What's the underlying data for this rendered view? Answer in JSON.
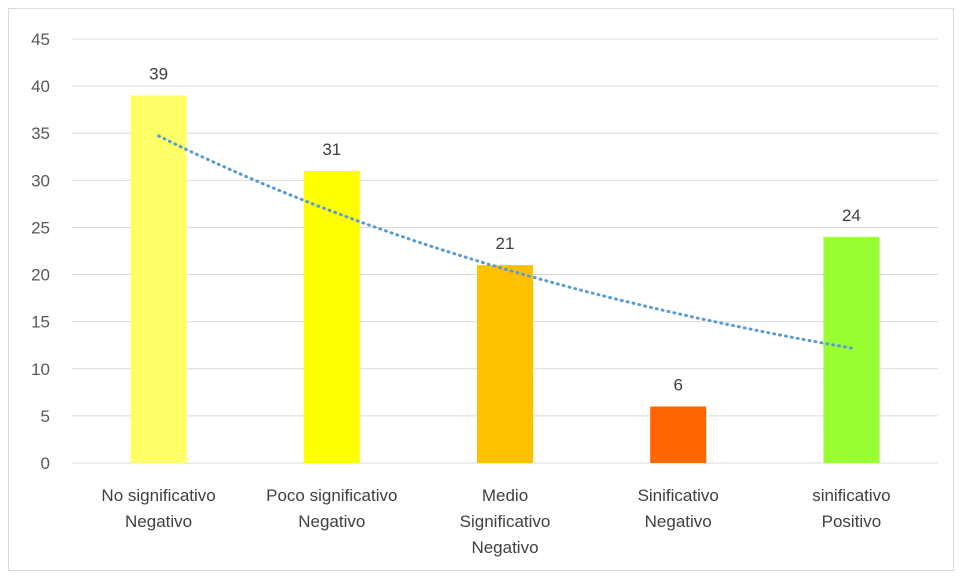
{
  "chart_data": {
    "type": "bar",
    "categories": [
      [
        "No significativo",
        "Negativo"
      ],
      [
        "Poco significativo",
        "Negativo"
      ],
      [
        "Medio",
        "Significativo",
        "Negativo"
      ],
      [
        "Sinificativo",
        "Negativo"
      ],
      [
        "sinificativo",
        "Positivo"
      ]
    ],
    "values": [
      39,
      31,
      21,
      6,
      24
    ],
    "bar_colors": [
      "#ffff66",
      "#ffff00",
      "#ffc000",
      "#ff6600",
      "#99ff33"
    ],
    "data_labels": [
      "39",
      "31",
      "21",
      "6",
      "24"
    ],
    "ylim": [
      0,
      45
    ],
    "yticks": [
      0,
      5,
      10,
      15,
      20,
      25,
      30,
      35,
      40,
      45
    ],
    "ytick_labels": [
      "0",
      "5",
      "10",
      "15",
      "20",
      "25",
      "30",
      "35",
      "40",
      "45"
    ],
    "grid": true,
    "gridline_color": "#d9d9d9",
    "trendline": {
      "type": "exponential",
      "style": "dotted",
      "color": "#5b9bd5",
      "start_value": 34.7,
      "end_value": 12.2
    },
    "title": "",
    "xlabel": "",
    "ylabel": ""
  }
}
